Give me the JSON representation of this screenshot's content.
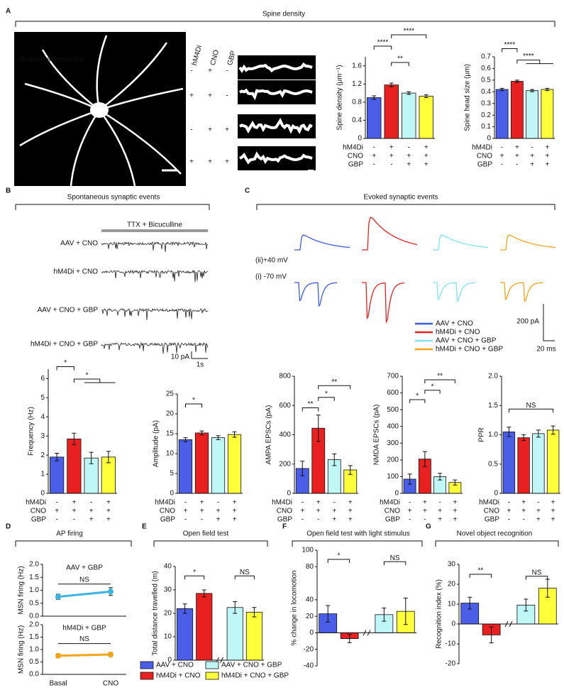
{
  "panels": [
    {
      "letter": "A",
      "title": "Spine density"
    },
    {
      "letter": "B",
      "title": "Spontaneous synaptic events"
    },
    {
      "letter": "C",
      "title": "Evoked synaptic events"
    },
    {
      "letter": "D",
      "title": "AP firing"
    },
    {
      "letter": "E",
      "title": "Open field test"
    },
    {
      "letter": "F",
      "title": "Open field test with light stimulus"
    },
    {
      "letter": "G",
      "title": "Novel object recognition"
    }
  ],
  "image": {
    "label": "Biocytin-streptavidin",
    "headers": [
      "hM4Di",
      "CNO",
      "GBP"
    ],
    "rows": [
      [
        "-",
        "+",
        "-"
      ],
      [
        "+",
        "+",
        "-"
      ],
      [
        "-",
        "+",
        "+"
      ],
      [
        "+",
        "+",
        "+"
      ]
    ]
  },
  "spontaneous": {
    "banner": "TTX + Bicuculline",
    "traces": [
      "AAV + CNO",
      "hM4Di + CNO",
      "AAV + CNO + GBP",
      "hM4Di + CNO + GBP"
    ],
    "scale": [
      "10 pA",
      "1s"
    ]
  },
  "evoked": {
    "voltages": [
      "(ii)+40 mV",
      "(i) -70 mV"
    ],
    "legend": {
      "labels": [
        "AAV + CNO",
        "hM4Di + CNO",
        "AAV + CNO + GBP",
        "hM4Di + CNO + GBP"
      ],
      "colors": [
        "#3b5be6",
        "#e52222",
        "#7fe3f0",
        "#f5a41c"
      ]
    },
    "scale": [
      "200 pA",
      "20 ms"
    ]
  },
  "legend": {
    "labels": [
      "AAV + CNO",
      "hM4Di + CNO",
      "AAV + CNO + GBP",
      "hM4Di + CNO + GBP"
    ],
    "colors": [
      "#4a5ee8",
      "#e82020",
      "#bff6f6",
      "#ffff3a"
    ]
  },
  "chart_data": [
    {
      "type": "bar",
      "ylabel": "Spine density (μm⁻¹)",
      "values": [
        0.9,
        1.18,
        1.0,
        0.93
      ],
      "errors": [
        0.04,
        0.04,
        0.03,
        0.03
      ],
      "ylim": [
        0,
        1.8
      ],
      "yticks": [
        0,
        0.4,
        0.8,
        1.2,
        1.6
      ],
      "significance": [
        "****",
        "**",
        "****"
      ],
      "conditions": {
        "labels": [
          "hM4Di",
          "CNO",
          "GBP"
        ],
        "rows": [
          [
            "-",
            "+",
            "-",
            "+"
          ],
          [
            "+",
            "+",
            "+",
            "+"
          ],
          [
            "-",
            "-",
            "+",
            "+"
          ]
        ]
      }
    },
    {
      "type": "bar",
      "ylabel": "Spine head size (μm)",
      "values": [
        0.42,
        0.49,
        0.41,
        0.42
      ],
      "errors": [
        0.01,
        0.01,
        0.01,
        0.01
      ],
      "ylim": [
        0,
        0.7
      ],
      "yticks": [
        0,
        0.1,
        0.2,
        0.3,
        0.4,
        0.5,
        0.6,
        0.7
      ],
      "significance": [
        "****",
        "****"
      ],
      "conditions": {
        "labels": [
          "hM4Di",
          "CNO",
          "GBP"
        ],
        "rows": [
          [
            "-",
            "+",
            "-",
            "+"
          ],
          [
            "+",
            "+",
            "+",
            "+"
          ],
          [
            "-",
            "-",
            "+",
            "+"
          ]
        ]
      }
    },
    {
      "type": "bar",
      "ylabel": "Frequency (Hz)",
      "values": [
        1.9,
        2.85,
        1.85,
        1.9
      ],
      "errors": [
        0.2,
        0.3,
        0.3,
        0.3
      ],
      "ylim": [
        0,
        6.5
      ],
      "yticks": [
        0,
        1,
        2,
        3,
        4,
        5,
        6
      ],
      "significance": [
        "*",
        "*"
      ],
      "conditions": {
        "labels": [
          "hM4Di",
          "CNO",
          "GBP"
        ],
        "rows": [
          [
            "-",
            "+",
            "-",
            "+"
          ],
          [
            "+",
            "+",
            "+",
            "+"
          ],
          [
            "-",
            "-",
            "+",
            "+"
          ]
        ]
      }
    },
    {
      "type": "bar",
      "ylabel": "Amplitude (pA)",
      "values": [
        13.5,
        15.2,
        14,
        14.8
      ],
      "errors": [
        0.5,
        0.5,
        0.5,
        0.7
      ],
      "ylim": [
        0,
        25
      ],
      "yticks": [
        0,
        5,
        10,
        15,
        20,
        25
      ],
      "significance": [
        "*"
      ],
      "conditions": {
        "labels": [
          "hM4Di",
          "CNO",
          "GBP"
        ],
        "rows": [
          [
            "-",
            "+",
            "-",
            "+"
          ],
          [
            "+",
            "+",
            "+",
            "+"
          ],
          [
            "-",
            "-",
            "+",
            "+"
          ]
        ]
      }
    },
    {
      "type": "bar",
      "ylabel": "AMPA EPSCs (pA)",
      "values": [
        170,
        445,
        230,
        160
      ],
      "errors": [
        50,
        90,
        40,
        30
      ],
      "ylim": [
        0,
        800
      ],
      "yticks": [
        0,
        200,
        400,
        600,
        800
      ],
      "significance": [
        "**",
        "*",
        "**"
      ],
      "conditions": {
        "labels": [
          "hM4Di",
          "CNO",
          "GBP"
        ],
        "rows": [
          [
            "-",
            "+",
            "-",
            "+"
          ],
          [
            "+",
            "+",
            "+",
            "+"
          ],
          [
            "-",
            "-",
            "+",
            "+"
          ]
        ]
      }
    },
    {
      "type": "bar",
      "ylabel": "NMDA EPSCs (pA)",
      "values": [
        85,
        205,
        100,
        65
      ],
      "errors": [
        30,
        45,
        20,
        15
      ],
      "ylim": [
        0,
        700
      ],
      "yticks": [
        0,
        100,
        200,
        300,
        400,
        500,
        600,
        700
      ],
      "significance": [
        "*",
        "*",
        "**"
      ],
      "conditions": {
        "labels": [
          "hM4Di",
          "CNO",
          "GBP"
        ],
        "rows": [
          [
            "-",
            "+",
            "-",
            "+"
          ],
          [
            "+",
            "+",
            "+",
            "+"
          ],
          [
            "-",
            "-",
            "+",
            "+"
          ]
        ]
      }
    },
    {
      "type": "bar",
      "ylabel": "PPR",
      "values": [
        1.05,
        0.95,
        1.02,
        1.08
      ],
      "errors": [
        0.08,
        0.05,
        0.06,
        0.07
      ],
      "ylim": [
        0,
        2
      ],
      "yticks": [
        0,
        0.5,
        {
          "value": 1,
          "label": "1.0"
        },
        1.5,
        {
          "value": 2,
          "label": "2.0"
        }
      ],
      "significance": [
        "NS"
      ],
      "conditions": {
        "labels": [
          "hM4Di",
          "CNO",
          "GBP"
        ],
        "rows": [
          [
            "-",
            "+",
            "-",
            "+"
          ],
          [
            "+",
            "+",
            "+",
            "+"
          ],
          [
            "-",
            "-",
            "+",
            "+"
          ]
        ]
      }
    },
    {
      "type": "line",
      "ylabel": "MSN firing (Hz)",
      "categories": [
        null,
        null
      ],
      "series": [
        {
          "name": "AAV + GBP",
          "color": "#3cb4e6",
          "values": [
            0.75,
            0.95
          ],
          "errors": [
            0.1,
            0.15
          ]
        }
      ],
      "ylim": [
        0,
        2
      ],
      "yticks": [
        {
          "value": 0,
          "label": "0.0"
        },
        0.5,
        {
          "value": 1,
          "label": "1.0"
        },
        1.5,
        {
          "value": 2,
          "label": "2.0"
        }
      ],
      "significance": [
        "NS"
      ]
    },
    {
      "type": "line",
      "ylabel": "MSN firing (Hz)",
      "categories": [
        "Basal",
        "CNO"
      ],
      "series": [
        {
          "name": "hM4Di + GBP",
          "color": "#f5a41c",
          "values": [
            0.75,
            0.8
          ],
          "errors": [
            0.08,
            0.08
          ]
        }
      ],
      "ylim": [
        0,
        2
      ],
      "yticks": [
        {
          "value": 0,
          "label": "0.0"
        },
        0.5,
        {
          "value": 1,
          "label": "1.0"
        },
        1.5,
        {
          "value": 2,
          "label": "2.0"
        }
      ],
      "significance": [
        "NS"
      ]
    },
    {
      "type": "bar",
      "ylabel": "Total distance travelled (m)",
      "values": [
        22,
        28.5,
        22.5,
        20.5
      ],
      "errors": [
        2,
        1.5,
        2.5,
        2
      ],
      "ylim": [
        0,
        40
      ],
      "yticks": [
        0,
        10,
        20,
        30,
        40
      ],
      "significance": [
        "*",
        "NS"
      ]
    },
    {
      "type": "bar",
      "ylabel": "% change in locomotion",
      "values": [
        23,
        -7,
        22,
        26
      ],
      "errors": [
        10,
        5,
        8,
        16
      ],
      "ylim": [
        -40,
        100
      ],
      "yticks": [
        -40,
        -20,
        0,
        20,
        40,
        80,
        100
      ],
      "significance": [
        "*",
        "NS"
      ]
    },
    {
      "type": "bar",
      "ylabel": "Recognition index (%)",
      "values": [
        10.5,
        -5.5,
        9.5,
        18
      ],
      "errors": [
        3,
        4,
        3,
        4.5
      ],
      "ylim": [
        -20,
        30
      ],
      "yticks": [
        -20,
        -10,
        0,
        10,
        20,
        30
      ],
      "significance": [
        "**",
        "NS"
      ]
    }
  ]
}
